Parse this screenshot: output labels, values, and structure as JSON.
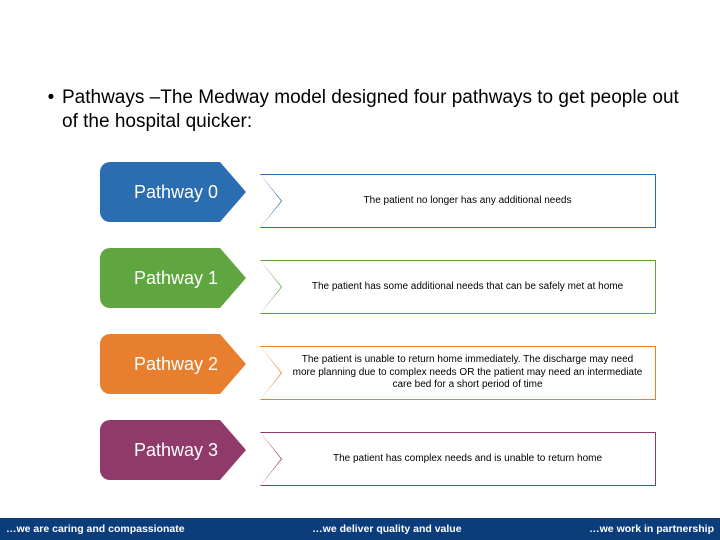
{
  "intro": {
    "bullet_glyph": "•",
    "text": "Pathways  –The Medway model designed four pathways to get people out of the hospital quicker:"
  },
  "pathways": [
    {
      "label": "Pathway 0",
      "color": "#2a6db0",
      "desc": "The patient no longer has any additional needs"
    },
    {
      "label": "Pathway 1",
      "color": "#5fa641",
      "desc": "The patient has some additional needs that can be safely met at home"
    },
    {
      "label": "Pathway 2",
      "color": "#e77f2e",
      "desc": "The patient is unable to return home immediately. The discharge may need more planning due to complex needs OR the patient may need an intermediate care bed for a short period of time"
    },
    {
      "label": "Pathway 3",
      "color": "#8f3a6b",
      "desc": "The patient has complex needs and is unable to return home"
    }
  ],
  "desc_box": {
    "border_color_fallback": "#777",
    "notch_fill": "#ffffff"
  },
  "footer": {
    "bg": "#0a3d7a",
    "left": "…we are caring and compassionate",
    "center": "…we deliver quality and value",
    "right": "…we work in partnership"
  }
}
